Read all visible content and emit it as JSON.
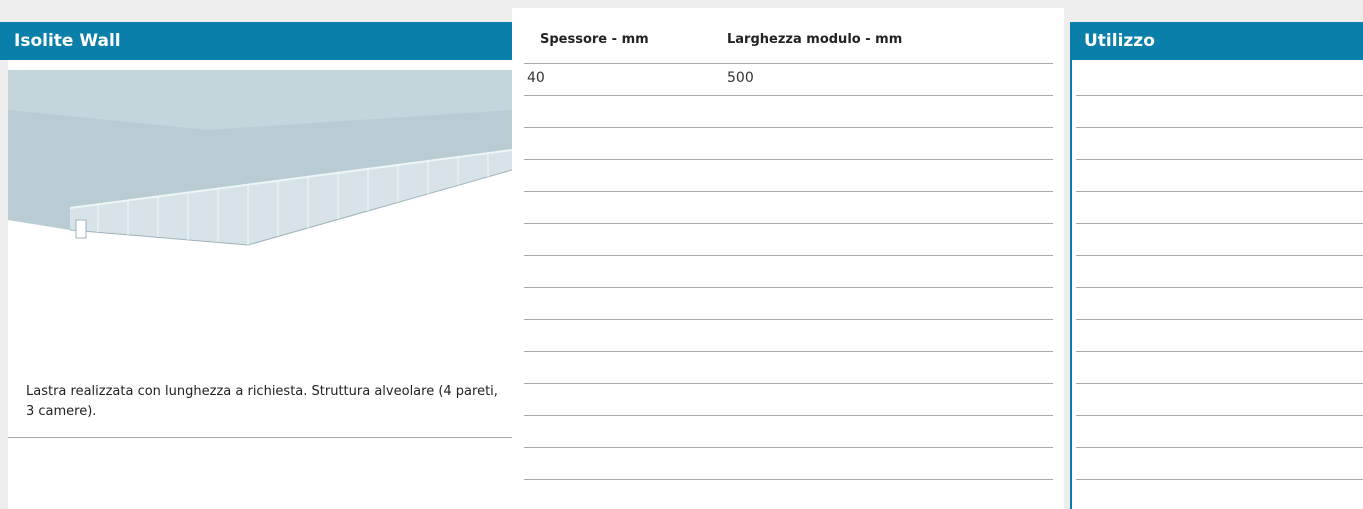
{
  "header": {
    "title": "Isolite Wall"
  },
  "description": "Lastra realizzata con lunghezza a richiesta. Struttura alveolare (4 pareti, 3 camere).",
  "specs": {
    "headers": [
      "Spessore - mm",
      "Larghezza modulo - mm"
    ],
    "rows": [
      [
        40,
        500
      ]
    ]
  },
  "usage": {
    "title": "Utilizzo"
  }
}
